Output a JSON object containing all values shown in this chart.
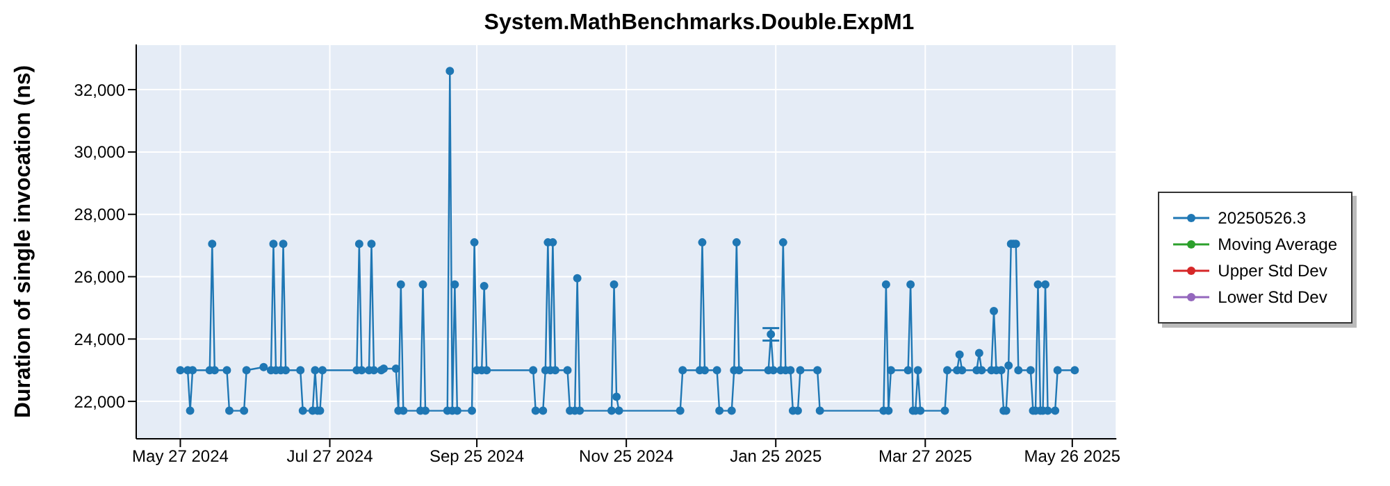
{
  "chart_data": {
    "type": "line",
    "title": "System.MathBenchmarks.Double.ExpM1",
    "ylabel": "Duration of single invocation (ns)",
    "x": [
      "2024-05-27",
      "2024-05-30",
      "2024-05-31",
      "2024-06-01",
      "2024-06-08",
      "2024-06-09",
      "2024-06-10",
      "2024-06-15",
      "2024-06-16",
      "2024-06-22",
      "2024-06-23",
      "2024-06-30",
      "2024-07-03",
      "2024-07-04",
      "2024-07-05",
      "2024-07-07",
      "2024-07-08",
      "2024-07-09",
      "2024-07-15",
      "2024-07-16",
      "2024-07-20",
      "2024-07-21",
      "2024-07-22",
      "2024-07-23",
      "2024-07-24",
      "2024-08-07",
      "2024-08-08",
      "2024-08-09",
      "2024-08-12",
      "2024-08-13",
      "2024-08-14",
      "2024-08-17",
      "2024-08-18",
      "2024-08-23",
      "2024-08-24",
      "2024-08-25",
      "2024-08-26",
      "2024-09-02",
      "2024-09-03",
      "2024-09-04",
      "2024-09-13",
      "2024-09-14",
      "2024-09-15",
      "2024-09-16",
      "2024-09-17",
      "2024-09-23",
      "2024-09-24",
      "2024-09-25",
      "2024-09-27",
      "2024-09-28",
      "2024-09-29",
      "2024-10-18",
      "2024-10-19",
      "2024-10-22",
      "2024-10-23",
      "2024-10-24",
      "2024-10-25",
      "2024-10-26",
      "2024-10-27",
      "2024-11-01",
      "2024-11-02",
      "2024-11-04",
      "2024-11-05",
      "2024-11-06",
      "2024-11-19",
      "2024-11-20",
      "2024-11-21",
      "2024-11-22",
      "2024-12-17",
      "2024-12-18",
      "2024-12-25",
      "2024-12-26",
      "2024-12-27",
      "2025-01-01",
      "2025-01-02",
      "2025-01-07",
      "2025-01-08",
      "2025-01-09",
      "2025-01-10",
      "2025-01-22",
      "2025-01-23",
      "2025-01-24",
      "2025-01-27",
      "2025-01-28",
      "2025-01-29",
      "2025-01-31",
      "2025-02-01",
      "2025-02-03",
      "2025-02-04",
      "2025-02-11",
      "2025-02-12",
      "2025-03-10",
      "2025-03-11",
      "2025-03-12",
      "2025-03-13",
      "2025-03-20",
      "2025-03-21",
      "2025-03-22",
      "2025-03-23",
      "2025-03-24",
      "2025-03-25",
      "2025-04-04",
      "2025-04-05",
      "2025-04-09",
      "2025-04-10",
      "2025-04-11",
      "2025-04-17",
      "2025-04-18",
      "2025-04-19",
      "2025-04-23",
      "2025-04-24",
      "2025-04-25",
      "2025-04-27",
      "2025-04-28",
      "2025-04-29",
      "2025-04-30",
      "2025-05-01",
      "2025-05-02",
      "2025-05-03",
      "2025-05-04",
      "2025-05-09",
      "2025-05-10",
      "2025-05-11",
      "2025-05-12",
      "2025-05-13",
      "2025-05-14",
      "2025-05-15",
      "2025-05-16",
      "2025-05-19",
      "2025-05-20",
      "2025-05-27"
    ],
    "series": [
      {
        "name": "20250526.3",
        "color": "#1f77b4",
        "values": [
          23000,
          23000,
          21700,
          23000,
          23000,
          27050,
          23000,
          23000,
          21700,
          21700,
          23000,
          23100,
          23000,
          27050,
          23000,
          23000,
          27050,
          23000,
          23000,
          21700,
          21700,
          23000,
          21700,
          21700,
          23000,
          23000,
          27050,
          23000,
          23000,
          27050,
          23000,
          23000,
          23050,
          23050,
          21700,
          25750,
          21700,
          21700,
          25750,
          21700,
          21700,
          32600,
          21700,
          25750,
          21700,
          21700,
          27100,
          23000,
          23000,
          25700,
          23000,
          23000,
          21700,
          21700,
          23000,
          27100,
          23000,
          27100,
          23000,
          23000,
          21700,
          21700,
          25950,
          21700,
          21700,
          25750,
          22150,
          21700,
          21700,
          23000,
          23000,
          27100,
          23000,
          23000,
          21700,
          21700,
          23000,
          27100,
          23000,
          23000,
          24150,
          23000,
          23000,
          27100,
          23000,
          23000,
          21700,
          21700,
          23000,
          23000,
          21700,
          21700,
          25750,
          21700,
          23000,
          23000,
          25750,
          21700,
          21700,
          23000,
          21700,
          21700,
          23000,
          23000,
          23500,
          23000,
          23000,
          23550,
          23000,
          23000,
          24900,
          23000,
          23000,
          21700,
          21700,
          23150,
          27050,
          27050,
          27050,
          23000,
          23000,
          21700,
          21700,
          25750,
          21700,
          21700,
          25750,
          21700,
          21700,
          23000,
          23000
        ],
        "errors": [
          null,
          null,
          null,
          null,
          null,
          null,
          null,
          null,
          null,
          null,
          null,
          null,
          null,
          null,
          null,
          null,
          null,
          null,
          null,
          null,
          null,
          null,
          null,
          null,
          null,
          null,
          null,
          null,
          null,
          null,
          null,
          null,
          null,
          null,
          null,
          null,
          null,
          null,
          null,
          null,
          null,
          null,
          null,
          null,
          null,
          null,
          null,
          null,
          null,
          null,
          null,
          null,
          null,
          null,
          null,
          null,
          null,
          null,
          null,
          null,
          null,
          null,
          null,
          null,
          null,
          null,
          null,
          null,
          null,
          null,
          null,
          null,
          null,
          null,
          null,
          null,
          null,
          null,
          null,
          null,
          [
            23950,
            24350
          ],
          null,
          null,
          null,
          null,
          null,
          null,
          null,
          null,
          null,
          null,
          null,
          null,
          null,
          null,
          null,
          null,
          null,
          null,
          null,
          null,
          null,
          null,
          null,
          null,
          null,
          null,
          null,
          null,
          null,
          null,
          null,
          null,
          null,
          null,
          null,
          null,
          null,
          null,
          null,
          null,
          null,
          null,
          null,
          null,
          null,
          null,
          null,
          null,
          null,
          null
        ]
      },
      {
        "name": "Moving Average",
        "color": "#2ca02c",
        "values": [
          null,
          null,
          null,
          null,
          null,
          null,
          null,
          null,
          null,
          null,
          null,
          null,
          null,
          null,
          null,
          null,
          null,
          null,
          null,
          null,
          null,
          null,
          null,
          null,
          null,
          null,
          null,
          null,
          null,
          null,
          null,
          null,
          null,
          null,
          null,
          null,
          null,
          null,
          null,
          null,
          null,
          null,
          null,
          null,
          null,
          null,
          null,
          null,
          null,
          null,
          null,
          null,
          null,
          null,
          null,
          null,
          null,
          null,
          null,
          null,
          null,
          null,
          null,
          null,
          null,
          null,
          null,
          null,
          null,
          null,
          null,
          null,
          null,
          null,
          null,
          null,
          null,
          null,
          null,
          null,
          null,
          null,
          null,
          null,
          null,
          null,
          null,
          null,
          null,
          null,
          null,
          null,
          null,
          null,
          null,
          null,
          null,
          null,
          null,
          null,
          null,
          null,
          null,
          null,
          null,
          null,
          null,
          null,
          null,
          null,
          null,
          null,
          null,
          null,
          null,
          null,
          null,
          null,
          null,
          null,
          null,
          null,
          null,
          null,
          null,
          null,
          null,
          null,
          null,
          null,
          null
        ]
      },
      {
        "name": "Upper Std Dev",
        "color": "#d62728",
        "values": [
          null,
          null,
          null,
          null,
          null,
          null,
          null,
          null,
          null,
          null,
          null,
          null,
          null,
          null,
          null,
          null,
          null,
          null,
          null,
          null,
          null,
          null,
          null,
          null,
          null,
          null,
          null,
          null,
          null,
          null,
          null,
          null,
          null,
          null,
          null,
          null,
          null,
          null,
          null,
          null,
          null,
          null,
          null,
          null,
          null,
          null,
          null,
          null,
          null,
          null,
          null,
          null,
          null,
          null,
          null,
          null,
          null,
          null,
          null,
          null,
          null,
          null,
          null,
          null,
          null,
          null,
          null,
          null,
          null,
          null,
          null,
          null,
          null,
          null,
          null,
          null,
          null,
          null,
          null,
          null,
          null,
          null,
          null,
          null,
          null,
          null,
          null,
          null,
          null,
          null,
          null,
          null,
          null,
          null,
          null,
          null,
          null,
          null,
          null,
          null,
          null,
          null,
          null,
          null,
          null,
          null,
          null,
          null,
          null,
          null,
          null,
          null,
          null,
          null,
          null,
          null,
          null,
          null,
          null,
          null,
          null,
          null,
          null,
          null,
          null,
          null,
          null,
          null,
          null,
          null,
          null
        ]
      },
      {
        "name": "Lower Std Dev",
        "color": "#9467bd",
        "values": [
          null,
          null,
          null,
          null,
          null,
          null,
          null,
          null,
          null,
          null,
          null,
          null,
          null,
          null,
          null,
          null,
          null,
          null,
          null,
          null,
          null,
          null,
          null,
          null,
          null,
          null,
          null,
          null,
          null,
          null,
          null,
          null,
          null,
          null,
          null,
          null,
          null,
          null,
          null,
          null,
          null,
          null,
          null,
          null,
          null,
          null,
          null,
          null,
          null,
          null,
          null,
          null,
          null,
          null,
          null,
          null,
          null,
          null,
          null,
          null,
          null,
          null,
          null,
          null,
          null,
          null,
          null,
          null,
          null,
          null,
          null,
          null,
          null,
          null,
          null,
          null,
          null,
          null,
          null,
          null,
          null,
          null,
          null,
          null,
          null,
          null,
          null,
          null,
          null,
          null,
          null,
          null,
          null,
          null,
          null,
          null,
          null,
          null,
          null,
          null,
          null,
          null,
          null,
          null,
          null,
          null,
          null,
          null,
          null,
          null,
          null,
          null,
          null,
          null,
          null,
          null,
          null,
          null,
          null,
          null,
          null,
          null,
          null,
          null,
          null,
          null,
          null,
          null,
          null,
          null,
          null
        ]
      }
    ],
    "xlim": [
      "2024-05-09",
      "2025-06-13"
    ],
    "xticks": [
      {
        "value": "2024-05-27",
        "label": "May 27 2024"
      },
      {
        "value": "2024-07-27",
        "label": "Jul 27 2024"
      },
      {
        "value": "2024-09-25",
        "label": "Sep 25 2024"
      },
      {
        "value": "2024-11-25",
        "label": "Nov 25 2024"
      },
      {
        "value": "2025-01-25",
        "label": "Jan 25 2025"
      },
      {
        "value": "2025-03-27",
        "label": "Mar 27 2025"
      },
      {
        "value": "2025-05-26",
        "label": "May 26 2025"
      }
    ],
    "ylim": [
      20800,
      33450
    ],
    "yticks": [
      {
        "value": 22000,
        "label": "22,000"
      },
      {
        "value": 24000,
        "label": "24,000"
      },
      {
        "value": 26000,
        "label": "26,000"
      },
      {
        "value": 28000,
        "label": "28,000"
      },
      {
        "value": 30000,
        "label": "30,000"
      },
      {
        "value": 32000,
        "label": "32,000"
      }
    ],
    "grid": true,
    "legend": "right",
    "marker": "circle",
    "line_style": "solid"
  }
}
